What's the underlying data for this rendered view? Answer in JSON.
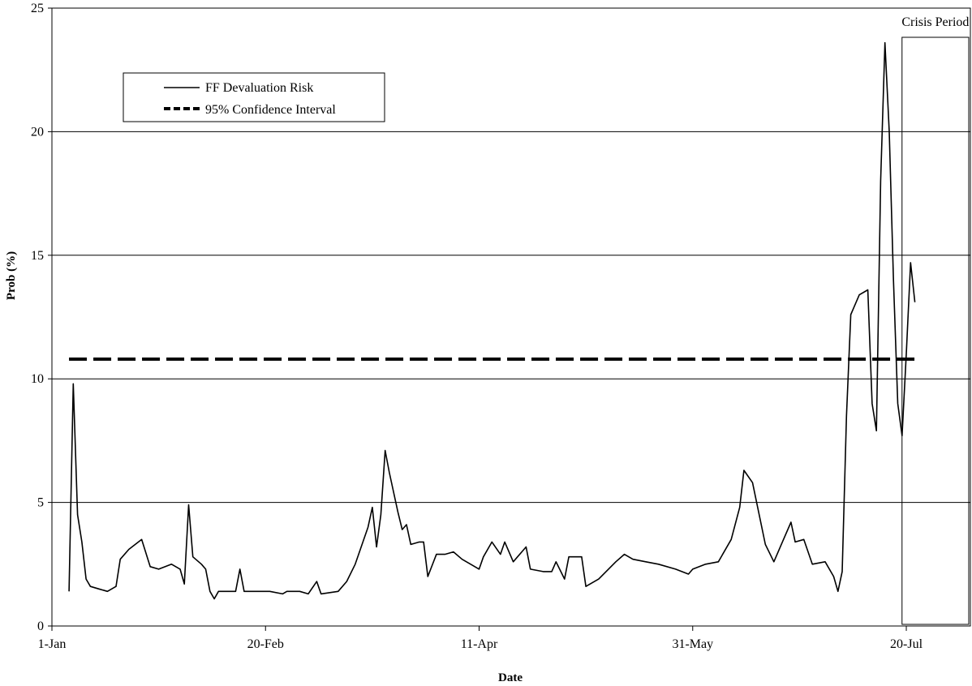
{
  "chart_data": {
    "type": "line",
    "title": "",
    "xlabel": "Date",
    "ylabel": "Prob (%)",
    "ylim": [
      0,
      25
    ],
    "xlim": [
      "1-Jan",
      "4-Aug"
    ],
    "grid": "horizontal",
    "legend_position": "top-left",
    "y_ticks": [
      "0",
      "5",
      "10",
      "15",
      "20",
      "25"
    ],
    "x_ticks": [
      {
        "label": "1-Jan",
        "date": "1-Jan"
      },
      {
        "label": "20-Feb",
        "date": "20-Feb"
      },
      {
        "label": "11-Apr",
        "date": "11-Apr"
      },
      {
        "label": "31-May",
        "date": "31-May"
      },
      {
        "label": "20-Jul",
        "date": "20-Jul"
      }
    ],
    "annotation": {
      "label": "Crisis Period",
      "x_start": "19-Jul",
      "x_end": "10-Aug"
    },
    "series": [
      {
        "name": "FF Devaluation Risk",
        "style": "solid",
        "color": "#000000",
        "points": [
          [
            "5-Jan",
            1.4
          ],
          [
            "6-Jan",
            9.8
          ],
          [
            "7-Jan",
            4.5
          ],
          [
            "8-Jan",
            3.4
          ],
          [
            "9-Jan",
            1.9
          ],
          [
            "10-Jan",
            1.6
          ],
          [
            "12-Jan",
            1.5
          ],
          [
            "14-Jan",
            1.4
          ],
          [
            "16-Jan",
            1.6
          ],
          [
            "17-Jan",
            2.7
          ],
          [
            "19-Jan",
            3.1
          ],
          [
            "22-Jan",
            3.5
          ],
          [
            "24-Jan",
            2.4
          ],
          [
            "26-Jan",
            2.3
          ],
          [
            "29-Jan",
            2.5
          ],
          [
            "31-Jan",
            2.3
          ],
          [
            "1-Feb",
            1.7
          ],
          [
            "2-Feb",
            4.9
          ],
          [
            "3-Feb",
            2.8
          ],
          [
            "5-Feb",
            2.5
          ],
          [
            "6-Feb",
            2.3
          ],
          [
            "7-Feb",
            1.4
          ],
          [
            "8-Feb",
            1.1
          ],
          [
            "9-Feb",
            1.4
          ],
          [
            "13-Feb",
            1.4
          ],
          [
            "14-Feb",
            2.3
          ],
          [
            "15-Feb",
            1.4
          ],
          [
            "19-Feb",
            1.4
          ],
          [
            "21-Feb",
            1.4
          ],
          [
            "24-Feb",
            1.3
          ],
          [
            "25-Feb",
            1.4
          ],
          [
            "28-Feb",
            1.4
          ],
          [
            "2-Mar",
            1.3
          ],
          [
            "4-Mar",
            1.8
          ],
          [
            "5-Mar",
            1.3
          ],
          [
            "9-Mar",
            1.4
          ],
          [
            "11-Mar",
            1.8
          ],
          [
            "13-Mar",
            2.5
          ],
          [
            "16-Mar",
            4.0
          ],
          [
            "17-Mar",
            4.8
          ],
          [
            "18-Mar",
            3.2
          ],
          [
            "19-Mar",
            4.5
          ],
          [
            "20-Mar",
            7.1
          ],
          [
            "21-Mar",
            6.2
          ],
          [
            "23-Mar",
            4.6
          ],
          [
            "24-Mar",
            3.9
          ],
          [
            "25-Mar",
            4.1
          ],
          [
            "26-Mar",
            3.3
          ],
          [
            "28-Mar",
            3.4
          ],
          [
            "29-Mar",
            3.4
          ],
          [
            "30-Mar",
            2.0
          ],
          [
            "1-Apr",
            2.9
          ],
          [
            "3-Apr",
            2.9
          ],
          [
            "5-Apr",
            3.0
          ],
          [
            "7-Apr",
            2.7
          ],
          [
            "10-Apr",
            2.4
          ],
          [
            "11-Apr",
            2.3
          ],
          [
            "12-Apr",
            2.8
          ],
          [
            "14-Apr",
            3.4
          ],
          [
            "16-Apr",
            2.9
          ],
          [
            "17-Apr",
            3.4
          ],
          [
            "19-Apr",
            2.6
          ],
          [
            "22-Apr",
            3.2
          ],
          [
            "23-Apr",
            2.3
          ],
          [
            "26-Apr",
            2.2
          ],
          [
            "28-Apr",
            2.2
          ],
          [
            "29-Apr",
            2.6
          ],
          [
            "1-May",
            1.9
          ],
          [
            "2-May",
            2.8
          ],
          [
            "5-May",
            2.8
          ],
          [
            "6-May",
            1.6
          ],
          [
            "9-May",
            1.9
          ],
          [
            "13-May",
            2.6
          ],
          [
            "15-May",
            2.9
          ],
          [
            "17-May",
            2.7
          ],
          [
            "20-May",
            2.6
          ],
          [
            "23-May",
            2.5
          ],
          [
            "27-May",
            2.3
          ],
          [
            "30-May",
            2.1
          ],
          [
            "31-May",
            2.3
          ],
          [
            "3-Jun",
            2.5
          ],
          [
            "6-Jun",
            2.6
          ],
          [
            "9-Jun",
            3.5
          ],
          [
            "11-Jun",
            4.8
          ],
          [
            "12-Jun",
            6.3
          ],
          [
            "14-Jun",
            5.8
          ],
          [
            "17-Jun",
            3.3
          ],
          [
            "19-Jun",
            2.6
          ],
          [
            "21-Jun",
            3.4
          ],
          [
            "23-Jun",
            4.2
          ],
          [
            "24-Jun",
            3.4
          ],
          [
            "26-Jun",
            3.5
          ],
          [
            "28-Jun",
            2.5
          ],
          [
            "1-Jul",
            2.6
          ],
          [
            "3-Jul",
            2.0
          ],
          [
            "4-Jul",
            1.4
          ],
          [
            "5-Jul",
            2.2
          ],
          [
            "6-Jul",
            8.5
          ],
          [
            "7-Jul",
            12.6
          ],
          [
            "9-Jul",
            13.4
          ],
          [
            "11-Jul",
            13.6
          ],
          [
            "12-Jul",
            9.0
          ],
          [
            "13-Jul",
            7.9
          ],
          [
            "14-Jul",
            18.0
          ],
          [
            "15-Jul",
            23.6
          ],
          [
            "16-Jul",
            20.0
          ],
          [
            "17-Jul",
            14.0
          ],
          [
            "18-Jul",
            9.0
          ],
          [
            "19-Jul",
            7.7
          ],
          [
            "20-Jul",
            11.0
          ],
          [
            "21-Jul",
            14.7
          ],
          [
            "22-Jul",
            13.1
          ]
        ]
      },
      {
        "name": "95% Confidence Interval",
        "style": "dashed",
        "color": "#000000",
        "x_range": [
          "5-Jan",
          "22-Jul"
        ],
        "value": 10.8
      }
    ]
  }
}
